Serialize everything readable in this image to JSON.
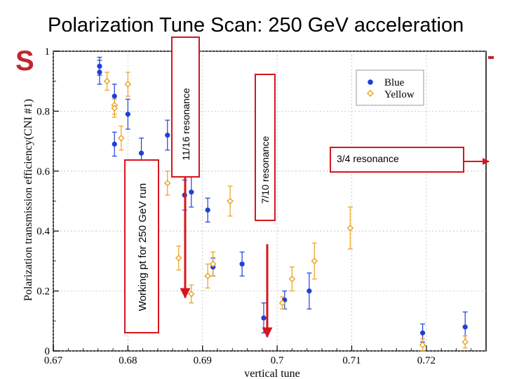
{
  "page_title": "Polarization Tune Scan: 250 GeV acceleration",
  "background_letter": "S",
  "chart_data": {
    "type": "scatter",
    "xlabel": "vertical tune",
    "ylabel": "Polarization transmission efficiency(CNI #1)",
    "xlim": [
      0.67,
      0.728
    ],
    "ylim": [
      0,
      1
    ],
    "xticks": [
      0.67,
      0.68,
      0.69,
      0.7,
      0.71,
      0.72
    ],
    "xtick_labels": [
      "0.67",
      "0.68",
      "0.69",
      "0.7",
      "0.71",
      "0.72"
    ],
    "yticks": [
      0,
      0.2,
      0.4,
      0.6,
      0.8,
      1
    ],
    "ytick_labels": [
      "0",
      "0.2",
      "0.4",
      "0.6",
      "0.8",
      "1"
    ],
    "grid": true,
    "legend_position": "top-right",
    "series": [
      {
        "name": "Blue",
        "color": "#1f3fd8",
        "marker": "circle",
        "points": [
          {
            "x": 0.6762,
            "y": 0.95,
            "err": 0.03
          },
          {
            "x": 0.6762,
            "y": 0.93,
            "err": 0.04
          },
          {
            "x": 0.6782,
            "y": 0.85,
            "err": 0.04
          },
          {
            "x": 0.6782,
            "y": 0.69,
            "err": 0.04
          },
          {
            "x": 0.68,
            "y": 0.79,
            "err": 0.05
          },
          {
            "x": 0.6818,
            "y": 0.66,
            "err": 0.05
          },
          {
            "x": 0.6853,
            "y": 0.72,
            "err": 0.05
          },
          {
            "x": 0.6876,
            "y": 0.52,
            "err": 0.05
          },
          {
            "x": 0.6885,
            "y": 0.53,
            "err": 0.05
          },
          {
            "x": 0.6907,
            "y": 0.47,
            "err": 0.04
          },
          {
            "x": 0.6914,
            "y": 0.28,
            "err": 0.03
          },
          {
            "x": 0.6953,
            "y": 0.29,
            "err": 0.04
          },
          {
            "x": 0.6982,
            "y": 0.11,
            "err": 0.05
          },
          {
            "x": 0.701,
            "y": 0.17,
            "err": 0.03
          },
          {
            "x": 0.7043,
            "y": 0.2,
            "err": 0.06
          },
          {
            "x": 0.7195,
            "y": 0.06,
            "err": 0.03
          },
          {
            "x": 0.7252,
            "y": 0.08,
            "err": 0.05
          }
        ]
      },
      {
        "name": "Yellow",
        "color": "#e8a21c",
        "marker": "diamond",
        "points": [
          {
            "x": 0.6772,
            "y": 0.9,
            "err": 0.03
          },
          {
            "x": 0.6782,
            "y": 0.82,
            "err": 0.03
          },
          {
            "x": 0.6782,
            "y": 0.81,
            "err": 0.03
          },
          {
            "x": 0.6791,
            "y": 0.71,
            "err": 0.04
          },
          {
            "x": 0.68,
            "y": 0.89,
            "err": 0.04
          },
          {
            "x": 0.683,
            "y": 0.46,
            "err": 0.05
          },
          {
            "x": 0.6853,
            "y": 0.56,
            "err": 0.04
          },
          {
            "x": 0.6868,
            "y": 0.31,
            "err": 0.04
          },
          {
            "x": 0.6885,
            "y": 0.19,
            "err": 0.03
          },
          {
            "x": 0.6907,
            "y": 0.25,
            "err": 0.04
          },
          {
            "x": 0.6914,
            "y": 0.29,
            "err": 0.04
          },
          {
            "x": 0.6937,
            "y": 0.5,
            "err": 0.05
          },
          {
            "x": 0.7007,
            "y": 0.16,
            "err": 0.02
          },
          {
            "x": 0.702,
            "y": 0.24,
            "err": 0.04
          },
          {
            "x": 0.705,
            "y": 0.3,
            "err": 0.06
          },
          {
            "x": 0.7098,
            "y": 0.41,
            "err": 0.07
          },
          {
            "x": 0.7195,
            "y": 0.02,
            "err": 0.02
          },
          {
            "x": 0.7252,
            "y": 0.03,
            "err": 0.02
          }
        ]
      }
    ],
    "annotations": [
      {
        "label": "Working pt for 250 GeV run",
        "tune": 0.6807
      },
      {
        "label": "11/16 resonance",
        "tune": 0.6875
      },
      {
        "label": "7/10 resonance",
        "tune": 0.6997
      },
      {
        "label": "3/4 resonance",
        "tune": 0.75
      }
    ]
  },
  "colors": {
    "annotation_box": "#d8141c",
    "arrow": "#d8141c",
    "grid": "#bdbdbd"
  }
}
